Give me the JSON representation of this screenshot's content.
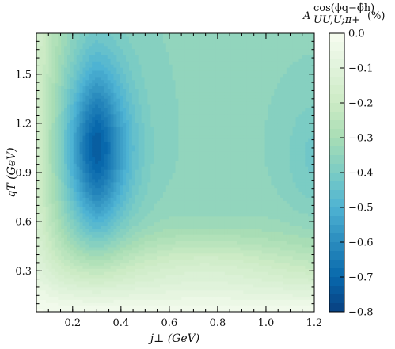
{
  "chart_data": {
    "type": "heatmap",
    "title": "",
    "xlabel": "j⊥ (GeV)",
    "ylabel": "qT (GeV)",
    "xlim": [
      0.05,
      1.2
    ],
    "ylim": [
      0.05,
      1.75
    ],
    "x_ticks": [
      "0.2",
      "0.4",
      "0.6",
      "0.8",
      "1.0",
      "1.2"
    ],
    "x_tick_values": [
      0.2,
      0.4,
      0.6,
      0.8,
      1.0,
      1.2
    ],
    "y_ticks": [
      "0.3",
      "0.6",
      "0.9",
      "1.2",
      "1.5"
    ],
    "y_tick_values": [
      0.3,
      0.6,
      0.9,
      1.2,
      1.5
    ],
    "colorbar": {
      "label_main": "A",
      "label_sup": "cos(ϕq−ϕ̃h)",
      "label_sub": "UU,U;π+",
      "label_unit": "(%)",
      "range": [
        -0.8,
        0.0
      ],
      "ticks": [
        "0.0",
        "−0.1",
        "−0.2",
        "−0.3",
        "−0.4",
        "−0.5",
        "−0.6",
        "−0.7",
        "−0.8"
      ],
      "tick_values": [
        0.0,
        -0.1,
        -0.2,
        -0.3,
        -0.4,
        -0.5,
        -0.6,
        -0.7,
        -0.8
      ],
      "colormap": "GnBu",
      "levels": 32
    },
    "features": {
      "minimum": {
        "x": 0.3,
        "y": 1.05,
        "value": -0.8
      },
      "valley_width": 0.13,
      "valley_height": 0.52,
      "right_secondary": {
        "x": 1.2,
        "y": 1.0,
        "value": -0.4
      },
      "plateau_value": -0.36,
      "grid": false
    }
  }
}
